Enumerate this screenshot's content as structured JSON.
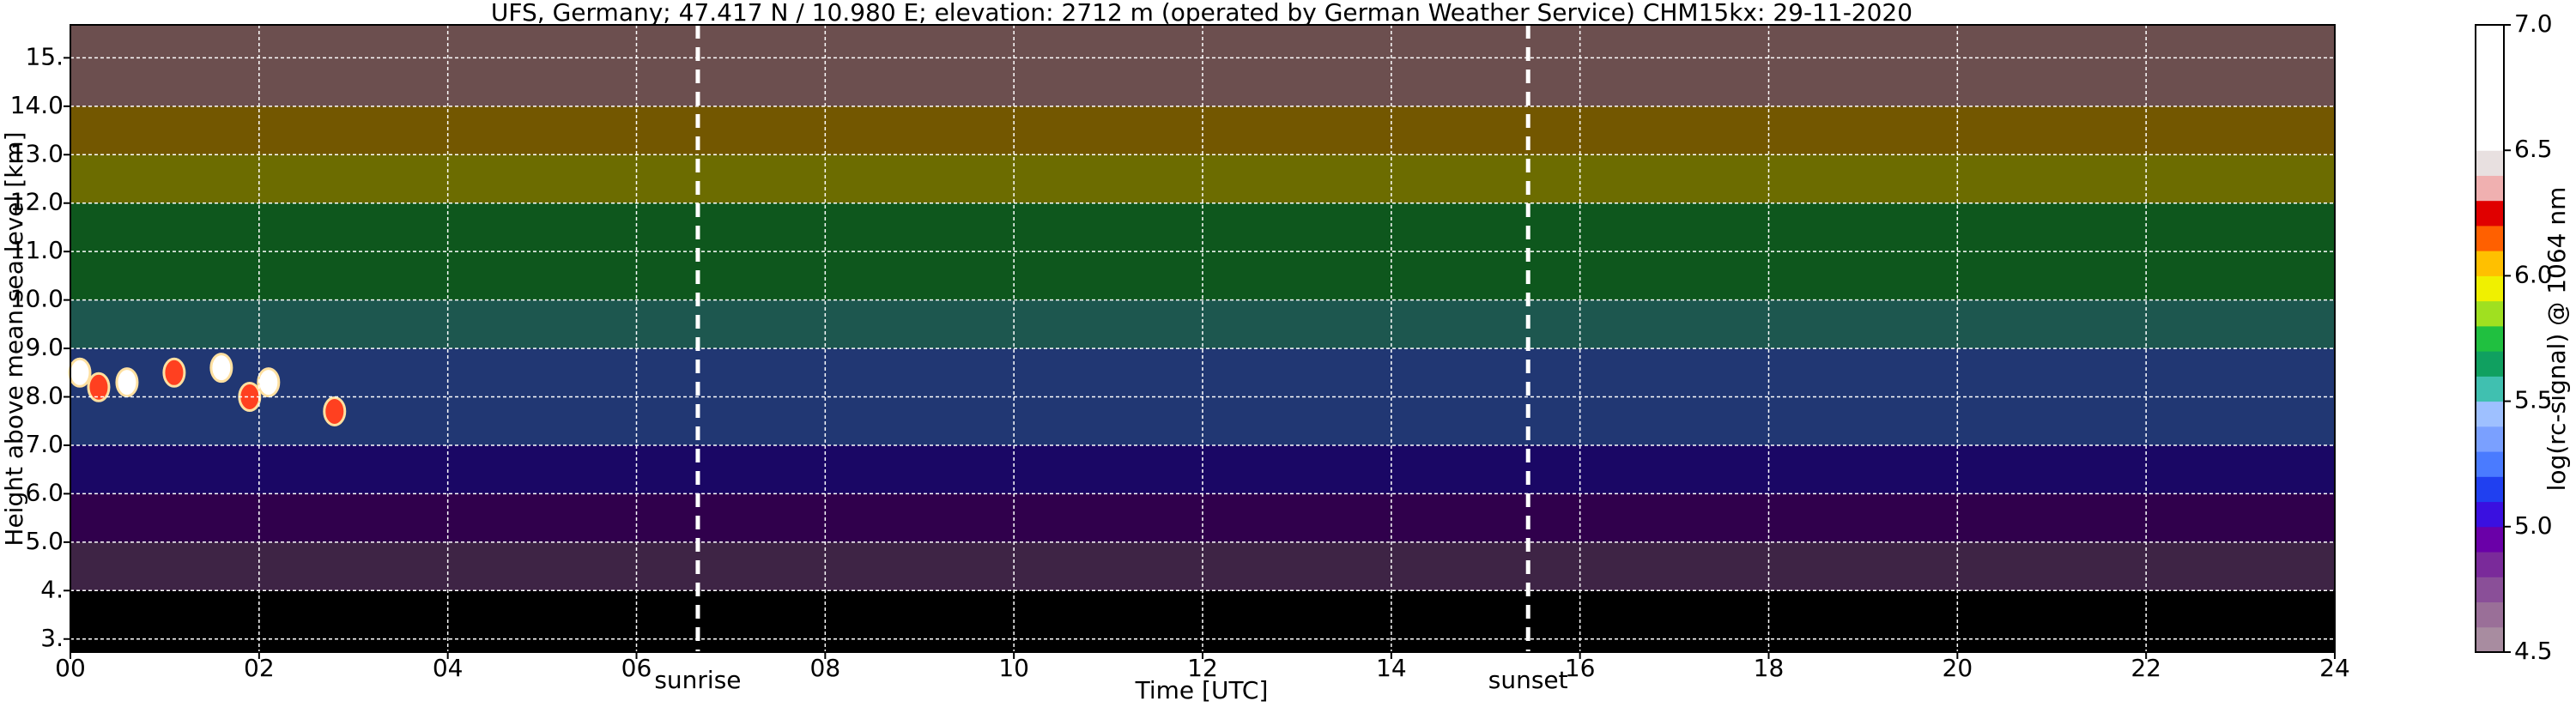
{
  "chart_data": {
    "type": "heatmap",
    "title": "UFS, Germany; 47.417 N / 10.980 E; elevation: 2712 m  (operated by German Weather Service)    CHM15kx: 29-11-2020",
    "x_label": "Time [UTC]",
    "y_label": "Height above mean sea level [km]",
    "colorbar_label": "log(rc-signal) @ 1064 nm",
    "xlim": [
      0,
      24
    ],
    "xticks": [
      {
        "value": 0,
        "label": "00"
      },
      {
        "value": 2,
        "label": "02"
      },
      {
        "value": 4,
        "label": "04"
      },
      {
        "value": 6,
        "label": "06"
      },
      {
        "value": 8,
        "label": "08"
      },
      {
        "value": 10,
        "label": "10"
      },
      {
        "value": 12,
        "label": "12"
      },
      {
        "value": 14,
        "label": "14"
      },
      {
        "value": 16,
        "label": "16"
      },
      {
        "value": 18,
        "label": "18"
      },
      {
        "value": 20,
        "label": "20"
      },
      {
        "value": 22,
        "label": "22"
      },
      {
        "value": 24,
        "label": "24"
      }
    ],
    "ylim": [
      2.73,
      15.68
    ],
    "yticks": [
      {
        "value": 3,
        "label": "3."
      },
      {
        "value": 4,
        "label": "4."
      },
      {
        "value": 5,
        "label": "5.0"
      },
      {
        "value": 6,
        "label": "6.0"
      },
      {
        "value": 7,
        "label": "7.0"
      },
      {
        "value": 8,
        "label": "8.0"
      },
      {
        "value": 9,
        "label": "9.0"
      },
      {
        "value": 10,
        "label": "10.0"
      },
      {
        "value": 11,
        "label": "11.0"
      },
      {
        "value": 12,
        "label": "12.0"
      },
      {
        "value": 13,
        "label": "13.0"
      },
      {
        "value": 14,
        "label": "14.0"
      },
      {
        "value": 15,
        "label": "15."
      }
    ],
    "grid": true,
    "y_bins": [
      2.73,
      3,
      4,
      5,
      6,
      7,
      8,
      9,
      10,
      11,
      12,
      13,
      14,
      15.68
    ],
    "values": [
      4.2,
      4.4,
      4.8,
      4.9,
      5.1,
      5.2,
      5.3,
      5.5,
      5.7,
      5.8,
      5.9,
      6.0,
      6.3
    ],
    "under_color": "#000000",
    "clim": [
      4.5,
      7.0
    ],
    "colors": [
      "#a88ca0",
      "#9a6f98",
      "#8a4f98",
      "#7a2a9a",
      "#6a00a8",
      "#3a10e0",
      "#2040f0",
      "#4a7bff",
      "#7aa0ff",
      "#9ec0ff",
      "#40c0b0",
      "#10a060",
      "#20c040",
      "#a0e020",
      "#f0f000",
      "#ffc000",
      "#ff6000",
      "#e00000",
      "#f0b0b0",
      "#e8e0e0",
      "#ffffff",
      "#ffffff",
      "#ffffff",
      "#ffffff",
      "#ffffff"
    ],
    "colorbar_ticks": [
      {
        "value": 4.5,
        "label": "4.5"
      },
      {
        "value": 5,
        "label": "5.0"
      },
      {
        "value": 5.5,
        "label": "5.5"
      },
      {
        "value": 6,
        "label": "6.0"
      },
      {
        "value": 6.5,
        "label": "6.5"
      },
      {
        "value": 7,
        "label": "7.0"
      }
    ],
    "clouds": {
      "x": [
        0.1,
        0.3,
        0.6,
        1.1,
        1.6,
        1.9,
        2.1,
        2.8
      ],
      "y": [
        8.5,
        8.2,
        8.3,
        8.5,
        8.6,
        8.0,
        8.3,
        7.7
      ]
    },
    "annotations": [
      {
        "text": "sunrise",
        "x": 6.65
      },
      {
        "text": "sunset",
        "x": 15.45
      }
    ]
  }
}
